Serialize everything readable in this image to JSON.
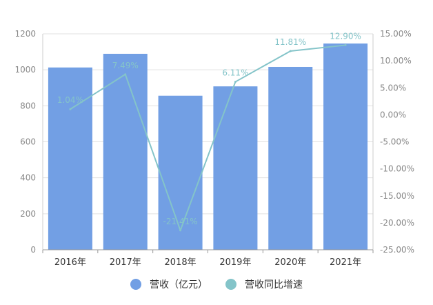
{
  "chart_data": {
    "type": "bar",
    "categories": [
      "2016年",
      "2017年",
      "2018年",
      "2019年",
      "2020年",
      "2021年"
    ],
    "series": [
      {
        "name": "营收（亿元）",
        "type": "bar",
        "axis": "left",
        "values": [
          1013,
          1089,
          856,
          908,
          1016,
          1146
        ]
      },
      {
        "name": "营收同比增速",
        "type": "line",
        "axis": "right",
        "values": [
          1.04,
          7.49,
          -21.41,
          6.11,
          11.81,
          12.9
        ],
        "labels": [
          "1.04%",
          "7.49%",
          "-21.41%",
          "6.11%",
          "11.81%",
          "12.90%"
        ]
      }
    ],
    "y_left": {
      "ylim": [
        0,
        1200
      ],
      "ticks": [
        "0",
        "200",
        "400",
        "600",
        "800",
        "1000",
        "1200"
      ]
    },
    "y_right": {
      "ylim": [
        -25,
        15
      ],
      "ticks": [
        "-25.00%",
        "-20.00%",
        "-15.00%",
        "-10.00%",
        "-5.00%",
        "0.00%",
        "5.00%",
        "10.00%",
        "15.00%"
      ]
    },
    "grid": true,
    "legend_position": "bottom",
    "colors": {
      "bar": "#729fe4",
      "line": "#84c4c9",
      "axis_text": "#888888",
      "grid": "#e0e0e0",
      "category_text": "#333333"
    }
  }
}
